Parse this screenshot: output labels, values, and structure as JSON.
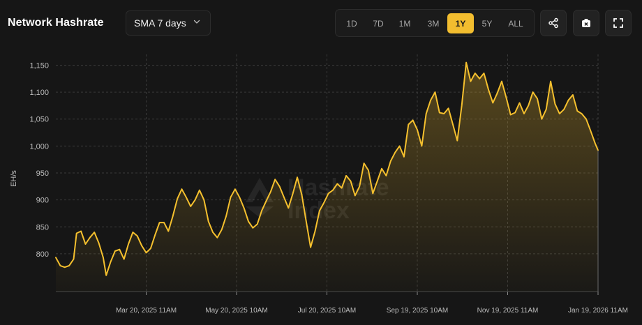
{
  "header": {
    "title": "Network Hashrate",
    "sma_select": {
      "value": "SMA 7 days"
    },
    "ranges": [
      "1D",
      "7D",
      "1M",
      "3M",
      "1Y",
      "5Y",
      "ALL"
    ],
    "active_range": "1Y",
    "buttons": {
      "share": "share-icon",
      "screenshot": "camera-icon",
      "fullscreen": "expand-icon"
    }
  },
  "watermark": {
    "line1": "Hashrate",
    "line2": "Index"
  },
  "colors": {
    "background": "#161616",
    "accent": "#f2bd2f",
    "line": "#f5c02e",
    "grid": "#3a3a3a",
    "tick": "#bdbdbd"
  },
  "chart_data": {
    "type": "area",
    "title": "Network Hashrate",
    "ylabel": "EH/s",
    "xlabel": "",
    "ylim": [
      730,
      1170
    ],
    "xlim": [
      "2025-01-18",
      "2026-01-19"
    ],
    "y_ticks": [
      "800",
      "850",
      "900",
      "950",
      "1,000",
      "1,050",
      "1,100",
      "1,150"
    ],
    "x_ticks": [
      {
        "date": "2025-03-20",
        "label": "Mar 20, 2025 11AM"
      },
      {
        "date": "2025-05-20",
        "label": "May 20, 2025 10AM"
      },
      {
        "date": "2025-07-20",
        "label": "Jul 20, 2025 10AM"
      },
      {
        "date": "2025-09-19",
        "label": "Sep 19, 2025 10AM"
      },
      {
        "date": "2025-11-19",
        "label": "Nov 19, 2025 11AM"
      },
      {
        "date": "2026-01-19",
        "label": "Jan 19, 2026 11AM"
      }
    ],
    "grid": true,
    "legend": "none",
    "series": [
      {
        "points": [
          [
            "2025-01-18",
            793
          ],
          [
            "2025-01-21",
            778
          ],
          [
            "2025-01-24",
            775
          ],
          [
            "2025-01-27",
            778
          ],
          [
            "2025-01-30",
            790
          ],
          [
            "2025-02-01",
            838
          ],
          [
            "2025-02-04",
            842
          ],
          [
            "2025-02-07",
            818
          ],
          [
            "2025-02-10",
            830
          ],
          [
            "2025-02-13",
            840
          ],
          [
            "2025-02-16",
            820
          ],
          [
            "2025-02-19",
            793
          ],
          [
            "2025-02-21",
            760
          ],
          [
            "2025-02-24",
            785
          ],
          [
            "2025-02-27",
            805
          ],
          [
            "2025-03-02",
            808
          ],
          [
            "2025-03-05",
            790
          ],
          [
            "2025-03-08",
            818
          ],
          [
            "2025-03-11",
            840
          ],
          [
            "2025-03-14",
            833
          ],
          [
            "2025-03-17",
            815
          ],
          [
            "2025-03-20",
            802
          ],
          [
            "2025-03-23",
            810
          ],
          [
            "2025-03-26",
            835
          ],
          [
            "2025-03-29",
            858
          ],
          [
            "2025-04-01",
            858
          ],
          [
            "2025-04-04",
            842
          ],
          [
            "2025-04-07",
            870
          ],
          [
            "2025-04-10",
            902
          ],
          [
            "2025-04-13",
            920
          ],
          [
            "2025-04-16",
            905
          ],
          [
            "2025-04-19",
            888
          ],
          [
            "2025-04-22",
            900
          ],
          [
            "2025-04-25",
            918
          ],
          [
            "2025-04-28",
            900
          ],
          [
            "2025-05-01",
            860
          ],
          [
            "2025-05-04",
            840
          ],
          [
            "2025-05-07",
            830
          ],
          [
            "2025-05-10",
            845
          ],
          [
            "2025-05-13",
            870
          ],
          [
            "2025-05-16",
            905
          ],
          [
            "2025-05-19",
            920
          ],
          [
            "2025-05-22",
            905
          ],
          [
            "2025-05-25",
            885
          ],
          [
            "2025-05-28",
            860
          ],
          [
            "2025-05-31",
            848
          ],
          [
            "2025-06-03",
            855
          ],
          [
            "2025-06-06",
            880
          ],
          [
            "2025-06-09",
            898
          ],
          [
            "2025-06-12",
            915
          ],
          [
            "2025-06-15",
            938
          ],
          [
            "2025-06-18",
            925
          ],
          [
            "2025-06-21",
            905
          ],
          [
            "2025-06-24",
            885
          ],
          [
            "2025-06-27",
            912
          ],
          [
            "2025-06-30",
            942
          ],
          [
            "2025-07-03",
            910
          ],
          [
            "2025-07-06",
            860
          ],
          [
            "2025-07-09",
            812
          ],
          [
            "2025-07-12",
            842
          ],
          [
            "2025-07-15",
            880
          ],
          [
            "2025-07-18",
            895
          ],
          [
            "2025-07-21",
            912
          ],
          [
            "2025-07-24",
            918
          ],
          [
            "2025-07-27",
            930
          ],
          [
            "2025-07-30",
            922
          ],
          [
            "2025-08-02",
            945
          ],
          [
            "2025-08-05",
            935
          ],
          [
            "2025-08-08",
            908
          ],
          [
            "2025-08-11",
            925
          ],
          [
            "2025-08-14",
            968
          ],
          [
            "2025-08-17",
            955
          ],
          [
            "2025-08-20",
            912
          ],
          [
            "2025-08-23",
            935
          ],
          [
            "2025-08-26",
            958
          ],
          [
            "2025-08-29",
            945
          ],
          [
            "2025-09-01",
            972
          ],
          [
            "2025-09-04",
            988
          ],
          [
            "2025-09-07",
            1000
          ],
          [
            "2025-09-10",
            980
          ],
          [
            "2025-09-13",
            1040
          ],
          [
            "2025-09-16",
            1048
          ],
          [
            "2025-09-19",
            1030
          ],
          [
            "2025-09-22",
            1000
          ],
          [
            "2025-09-25",
            1060
          ],
          [
            "2025-09-28",
            1085
          ],
          [
            "2025-10-01",
            1100
          ],
          [
            "2025-10-04",
            1062
          ],
          [
            "2025-10-07",
            1060
          ],
          [
            "2025-10-10",
            1070
          ],
          [
            "2025-10-13",
            1040
          ],
          [
            "2025-10-16",
            1010
          ],
          [
            "2025-10-19",
            1075
          ],
          [
            "2025-10-22",
            1155
          ],
          [
            "2025-10-25",
            1120
          ],
          [
            "2025-10-28",
            1135
          ],
          [
            "2025-10-31",
            1125
          ],
          [
            "2025-11-03",
            1135
          ],
          [
            "2025-11-06",
            1105
          ],
          [
            "2025-11-09",
            1080
          ],
          [
            "2025-11-12",
            1098
          ],
          [
            "2025-11-15",
            1120
          ],
          [
            "2025-11-18",
            1090
          ],
          [
            "2025-11-21",
            1058
          ],
          [
            "2025-11-24",
            1062
          ],
          [
            "2025-11-27",
            1080
          ],
          [
            "2025-11-30",
            1060
          ],
          [
            "2025-12-03",
            1075
          ],
          [
            "2025-12-06",
            1100
          ],
          [
            "2025-12-09",
            1088
          ],
          [
            "2025-12-12",
            1050
          ],
          [
            "2025-12-15",
            1068
          ],
          [
            "2025-12-18",
            1120
          ],
          [
            "2025-12-21",
            1078
          ],
          [
            "2025-12-24",
            1060
          ],
          [
            "2025-12-27",
            1068
          ],
          [
            "2025-12-30",
            1085
          ],
          [
            "2026-01-02",
            1095
          ],
          [
            "2026-01-05",
            1065
          ],
          [
            "2026-01-08",
            1060
          ],
          [
            "2026-01-11",
            1050
          ],
          [
            "2026-01-14",
            1028
          ],
          [
            "2026-01-17",
            1005
          ],
          [
            "2026-01-19",
            992
          ]
        ]
      }
    ]
  }
}
